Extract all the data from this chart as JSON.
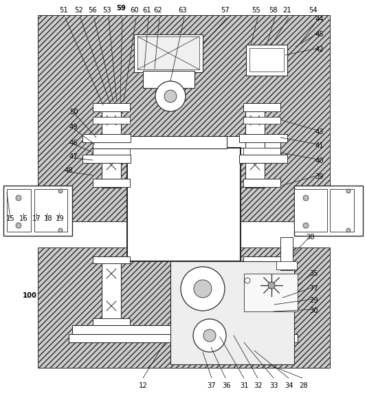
{
  "fig_w": 5.34,
  "fig_h": 5.76,
  "dpi": 100,
  "lc": "#2a2a2a",
  "hatch_fc": "#c8c8c8",
  "white": "#ffffff",
  "gray": "#e0e0e0"
}
